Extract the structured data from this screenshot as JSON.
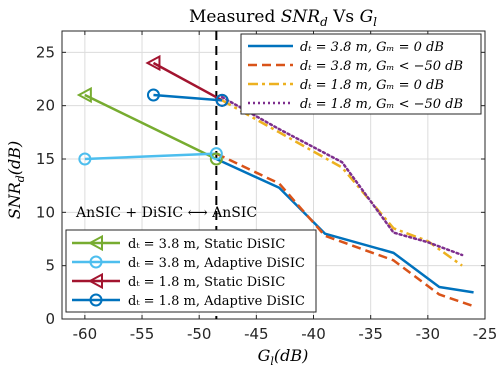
{
  "chart_data": {
    "type": "line",
    "title_parts": [
      "Measured ",
      "SNR",
      "d",
      " Vs ",
      "G",
      "l"
    ],
    "xlabel_parts": [
      "G",
      "l",
      "(dB)"
    ],
    "ylabel_parts": [
      "SNR",
      "d",
      "(dB)"
    ],
    "xlim": [
      -62,
      -25
    ],
    "ylim": [
      0,
      27
    ],
    "xticks": [
      -60,
      -55,
      -50,
      -45,
      -40,
      -35,
      -30,
      -25
    ],
    "yticks": [
      0,
      5,
      10,
      15,
      20,
      25
    ],
    "grid": true,
    "vline_x": -48.5,
    "annotation": "AnSIC + DiSIC ⟷ AnSIC",
    "legend_top_right": [
      {
        "name": "d_t = 3.8 m, G_m = 0 dB",
        "label": "dₜ = 3.8 m, Gₘ = 0 dB",
        "color": "#0072BD",
        "dash": "solid",
        "width": 2.5,
        "x": [
          -48.5,
          -43,
          -39,
          -33,
          -29,
          -26
        ],
        "y": [
          15,
          12.3,
          8,
          6.2,
          3,
          2.5
        ]
      },
      {
        "name": "d_t = 3.8 m, G_m < -50 dB",
        "label": "dₜ = 3.8 m, Gₘ < −50 dB",
        "color": "#D95319",
        "dash": "dashed",
        "width": 2.5,
        "x": [
          -48.5,
          -43,
          -39,
          -33,
          -29,
          -26
        ],
        "y": [
          15.5,
          12.7,
          7.8,
          5.5,
          2.3,
          1.2
        ]
      },
      {
        "name": "d_t = 1.8 m, G_m = 0 dB",
        "label": "dₜ = 1.8 m, Gₘ = 0 dB",
        "color": "#EDB120",
        "dash": "dashdot",
        "width": 2.5,
        "x": [
          -48,
          -43,
          -37.5,
          -33,
          -30,
          -27
        ],
        "y": [
          20.5,
          17.5,
          14.2,
          8.5,
          7.3,
          5
        ]
      },
      {
        "name": "d_t = 1.8 m, G_m < -50 dB",
        "label": "dₜ = 1.8 m, Gₘ < −50 dB",
        "color": "#7E2F8E",
        "dash": "dotted",
        "width": 2.5,
        "x": [
          -48,
          -43,
          -37.5,
          -33,
          -30,
          -27
        ],
        "y": [
          20.8,
          17.8,
          14.7,
          8.1,
          7.2,
          6
        ]
      }
    ],
    "legend_bottom_left": [
      {
        "name": "d_t = 3.8 m, Static DiSIC",
        "label": "dₜ = 3.8 m, Static DiSIC",
        "color": "#77AC30",
        "marker": "triangle-left",
        "x": [
          -60,
          -48.5
        ],
        "y": [
          21,
          15
        ]
      },
      {
        "name": "d_t = 3.8 m, Adaptive DiSIC",
        "label": "dₜ = 3.8 m, Adaptive DiSIC",
        "color": "#4DBEEE",
        "marker": "circle",
        "x": [
          -60,
          -48.5
        ],
        "y": [
          15,
          15.5
        ]
      },
      {
        "name": "d_t = 1.8 m, Static DiSIC",
        "label": "dₜ = 1.8 m, Static DiSIC",
        "color": "#A2142F",
        "marker": "triangle-left",
        "x": [
          -54,
          -48
        ],
        "y": [
          24,
          20.5
        ]
      },
      {
        "name": "d_t = 1.8 m, Adaptive DiSIC",
        "label": "dₜ = 1.8 m, Adaptive DiSIC",
        "color": "#0072BD",
        "marker": "circle",
        "x": [
          -54,
          -48
        ],
        "y": [
          21,
          20.5
        ]
      }
    ]
  }
}
